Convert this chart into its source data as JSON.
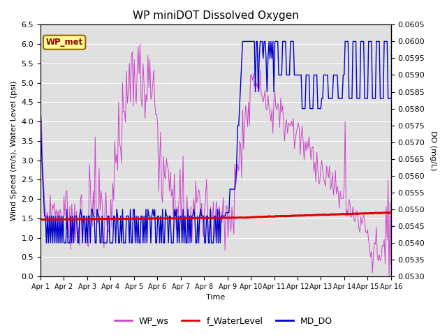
{
  "title": "WP miniDOT Dissolved Oxygen",
  "xlabel": "Time",
  "ylabel_left": "Wind Speed (m/s), Water Level (psi)",
  "ylabel_right": "DO (mg/L)",
  "ylim_left": [
    0.0,
    6.5
  ],
  "ylim_right": [
    0.053,
    0.0605
  ],
  "yticks_left": [
    0.0,
    0.5,
    1.0,
    1.5,
    2.0,
    2.5,
    3.0,
    3.5,
    4.0,
    4.5,
    5.0,
    5.5,
    6.0,
    6.5
  ],
  "yticks_right": [
    0.053,
    0.0535,
    0.054,
    0.0545,
    0.055,
    0.0555,
    0.056,
    0.0565,
    0.057,
    0.0575,
    0.058,
    0.0585,
    0.059,
    0.0595,
    0.06,
    0.0605
  ],
  "xticklabels": [
    "Apr 1",
    "Apr 2",
    "Apr 3",
    "Apr 4",
    "Apr 5",
    "Apr 6",
    "Apr 7",
    "Apr 8",
    "Apr 9",
    "Apr 10",
    "Apr 11",
    "Apr 12",
    "Apr 13",
    "Apr 14",
    "Apr 15",
    "Apr 16"
  ],
  "wp_met_label": "WP_met",
  "wp_met_facecolor": "#FFFF99",
  "wp_met_edgecolor": "#996600",
  "wp_met_textcolor": "#990000",
  "legend_labels": [
    "WP_ws",
    "f_WaterLevel",
    "MD_DO"
  ],
  "legend_colors": [
    "#CC44CC",
    "#DD0000",
    "#0000CC"
  ],
  "line_ws_color": "#CC44CC",
  "line_wl_color": "#DD0000",
  "line_do_color": "#0000CC",
  "bg_color": "#E0E0E0",
  "grid_color": "#FFFFFF",
  "title_fontsize": 11,
  "axis_fontsize": 8,
  "tick_fontsize": 8
}
